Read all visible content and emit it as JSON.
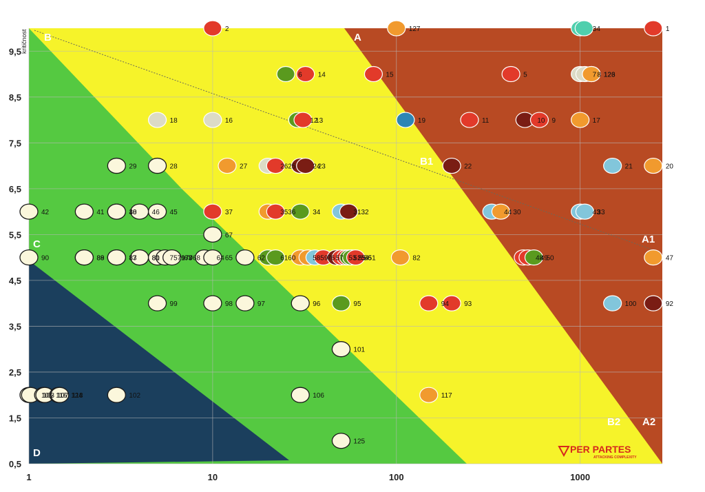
{
  "chart_data": {
    "type": "scatter",
    "ylabel": "kritičnost",
    "x_scale": "log",
    "xlim": [
      1,
      2800
    ],
    "ylim": [
      0.5,
      10
    ],
    "x_ticks": [
      "1",
      "10",
      "100",
      "1000"
    ],
    "y_ticks": [
      "0,5",
      "1,5",
      "2,5",
      "3,5",
      "4,5",
      "5,5",
      "6,5",
      "7,5",
      "8,5",
      "9,5"
    ],
    "grid": true,
    "colors": {
      "zone_A": "#b84a23",
      "zone_B": "#f6f32a",
      "zone_C": "#55c941",
      "zone_D": "#1b3f5d",
      "cream": "#fbf7dc",
      "red": "#e23a2a",
      "orange": "#f19a2e",
      "green": "#5a9a1e",
      "lightblue": "#82c6db",
      "darkred": "#7a1d14",
      "teal": "#4fcfad",
      "grey": "#dcdbc6",
      "blue": "#2e86b4"
    },
    "zones": [
      {
        "name": "A",
        "label": "A"
      },
      {
        "name": "A1",
        "label": "A1"
      },
      {
        "name": "A2",
        "label": "A2"
      },
      {
        "name": "B",
        "label": "B"
      },
      {
        "name": "B1",
        "label": "B1"
      },
      {
        "name": "B2",
        "label": "B2"
      },
      {
        "name": "C",
        "label": "C"
      },
      {
        "name": "D",
        "label": "D"
      }
    ],
    "points": [
      {
        "label": "1",
        "x": 2500,
        "y": 10,
        "color": "red"
      },
      {
        "label": "2",
        "x": 10,
        "y": 10,
        "color": "red"
      },
      {
        "label": "3",
        "x": 1000,
        "y": 10,
        "color": "teal"
      },
      {
        "label": "4",
        "x": 1050,
        "y": 10,
        "color": "teal"
      },
      {
        "label": "127",
        "x": 100,
        "y": 10,
        "color": "orange"
      },
      {
        "label": "6",
        "x": 25,
        "y": 9,
        "color": "green"
      },
      {
        "label": "14",
        "x": 32,
        "y": 9,
        "color": "red"
      },
      {
        "label": "15",
        "x": 75,
        "y": 9,
        "color": "red"
      },
      {
        "label": "5",
        "x": 420,
        "y": 9,
        "color": "red"
      },
      {
        "label": "7",
        "x": 1000,
        "y": 9,
        "color": "grey"
      },
      {
        "label": "8",
        "x": 1060,
        "y": 9,
        "color": "grey"
      },
      {
        "label": "126",
        "x": 1150,
        "y": 9,
        "color": "orange"
      },
      {
        "label": "123",
        "x": 1150,
        "y": 9,
        "color": "orange"
      },
      {
        "label": "18",
        "x": 5,
        "y": 8,
        "color": "grey"
      },
      {
        "label": "16",
        "x": 10,
        "y": 8,
        "color": "grey"
      },
      {
        "label": "12",
        "x": 29,
        "y": 8,
        "color": "green"
      },
      {
        "label": "13",
        "x": 31,
        "y": 8,
        "color": "red"
      },
      {
        "label": "19",
        "x": 112,
        "y": 8,
        "color": "blue"
      },
      {
        "label": "11",
        "x": 250,
        "y": 8,
        "color": "red"
      },
      {
        "label": "10",
        "x": 500,
        "y": 8,
        "color": "darkred"
      },
      {
        "label": "9",
        "x": 600,
        "y": 8,
        "color": "red"
      },
      {
        "label": "17",
        "x": 1000,
        "y": 8,
        "color": "orange"
      },
      {
        "label": "29",
        "x": 3,
        "y": 7,
        "color": "cream"
      },
      {
        "label": "28",
        "x": 5,
        "y": 7,
        "color": "cream"
      },
      {
        "label": "27",
        "x": 12,
        "y": 7,
        "color": "orange"
      },
      {
        "label": "26",
        "x": 20,
        "y": 7,
        "color": "grey"
      },
      {
        "label": "25",
        "x": 22,
        "y": 7,
        "color": "red"
      },
      {
        "label": "24",
        "x": 30,
        "y": 7,
        "color": "darkred"
      },
      {
        "label": "23",
        "x": 32,
        "y": 7,
        "color": "darkred"
      },
      {
        "label": "22",
        "x": 200,
        "y": 7,
        "color": "darkred"
      },
      {
        "label": "21",
        "x": 1500,
        "y": 7,
        "color": "lightblue"
      },
      {
        "label": "20",
        "x": 2500,
        "y": 7,
        "color": "orange"
      },
      {
        "label": "42",
        "x": 1,
        "y": 6,
        "color": "cream"
      },
      {
        "label": "41",
        "x": 2,
        "y": 6,
        "color": "cream"
      },
      {
        "label": "40",
        "x": 3,
        "y": 6,
        "color": "cream"
      },
      {
        "label": "38",
        "x": 3,
        "y": 6,
        "color": "cream"
      },
      {
        "label": "46",
        "x": 4,
        "y": 6,
        "color": "cream"
      },
      {
        "label": "45",
        "x": 5,
        "y": 6,
        "color": "cream"
      },
      {
        "label": "37",
        "x": 10,
        "y": 6,
        "color": "red"
      },
      {
        "label": "35",
        "x": 20,
        "y": 6,
        "color": "orange"
      },
      {
        "label": "36",
        "x": 22,
        "y": 6,
        "color": "red"
      },
      {
        "label": "34",
        "x": 30,
        "y": 6,
        "color": "green"
      },
      {
        "label": "31",
        "x": 50,
        "y": 6,
        "color": "lightblue"
      },
      {
        "label": "32",
        "x": 55,
        "y": 6,
        "color": "darkred"
      },
      {
        "label": "44",
        "x": 330,
        "y": 6,
        "color": "lightblue"
      },
      {
        "label": "30",
        "x": 370,
        "y": 6,
        "color": "orange"
      },
      {
        "label": "43",
        "x": 1000,
        "y": 6,
        "color": "lightblue"
      },
      {
        "label": "33",
        "x": 1060,
        "y": 6,
        "color": "lightblue"
      },
      {
        "label": "67",
        "x": 10,
        "y": 5.5,
        "color": "cream"
      },
      {
        "label": "90",
        "x": 1,
        "y": 5,
        "color": "cream"
      },
      {
        "label": "89",
        "x": 2,
        "y": 5,
        "color": "cream"
      },
      {
        "label": "88",
        "x": 2,
        "y": 5,
        "color": "cream"
      },
      {
        "label": "87",
        "x": 3,
        "y": 5,
        "color": "cream"
      },
      {
        "label": "83",
        "x": 3,
        "y": 5,
        "color": "cream"
      },
      {
        "label": "81",
        "x": 4,
        "y": 5,
        "color": "cream"
      },
      {
        "label": "80",
        "x": 4,
        "y": 5,
        "color": "cream"
      },
      {
        "label": "757970",
        "x": 5,
        "y": 5,
        "color": "cream"
      },
      {
        "label": "717768",
        "x": 5.5,
        "y": 5,
        "color": "cream"
      },
      {
        "label": "63",
        "x": 6,
        "y": 5,
        "color": "cream"
      },
      {
        "label": "64",
        "x": 9,
        "y": 5,
        "color": "cream"
      },
      {
        "label": "65",
        "x": 10,
        "y": 5,
        "color": "cream"
      },
      {
        "label": "62",
        "x": 15,
        "y": 5,
        "color": "cream"
      },
      {
        "label": "61",
        "x": 20,
        "y": 5,
        "color": "green"
      },
      {
        "label": "60",
        "x": 22,
        "y": 5,
        "color": "green"
      },
      {
        "label": "58",
        "x": 30,
        "y": 5,
        "color": "orange"
      },
      {
        "label": "59",
        "x": 33,
        "y": 5,
        "color": "orange"
      },
      {
        "label": "76",
        "x": 36,
        "y": 5,
        "color": "lightblue"
      },
      {
        "label": "57",
        "x": 40,
        "y": 5,
        "color": "red"
      },
      {
        "label": "53",
        "x": 47,
        "y": 5,
        "color": "darkred"
      },
      {
        "label": "52",
        "x": 50,
        "y": 5,
        "color": "red"
      },
      {
        "label": "55",
        "x": 53,
        "y": 5,
        "color": "red"
      },
      {
        "label": "54",
        "x": 55,
        "y": 5,
        "color": "green"
      },
      {
        "label": "56",
        "x": 57,
        "y": 5,
        "color": "green"
      },
      {
        "label": "51",
        "x": 60,
        "y": 5,
        "color": "red"
      },
      {
        "label": "82",
        "x": 105,
        "y": 5,
        "color": "orange"
      },
      {
        "label": "48",
        "x": 490,
        "y": 5,
        "color": "red"
      },
      {
        "label": "49",
        "x": 520,
        "y": 5,
        "color": "red"
      },
      {
        "label": "50",
        "x": 560,
        "y": 5,
        "color": "green"
      },
      {
        "label": "47",
        "x": 2500,
        "y": 5,
        "color": "orange"
      },
      {
        "label": "99",
        "x": 5,
        "y": 4,
        "color": "cream"
      },
      {
        "label": "98",
        "x": 10,
        "y": 4,
        "color": "cream"
      },
      {
        "label": "97",
        "x": 15,
        "y": 4,
        "color": "cream"
      },
      {
        "label": "96",
        "x": 30,
        "y": 4,
        "color": "cream"
      },
      {
        "label": "95",
        "x": 50,
        "y": 4,
        "color": "green"
      },
      {
        "label": "94",
        "x": 150,
        "y": 4,
        "color": "red"
      },
      {
        "label": "93",
        "x": 200,
        "y": 4,
        "color": "red"
      },
      {
        "label": "100",
        "x": 1500,
        "y": 4,
        "color": "lightblue"
      },
      {
        "label": "92",
        "x": 2500,
        "y": 4,
        "color": "darkred"
      },
      {
        "label": "101",
        "x": 50,
        "y": 3,
        "color": "cream"
      },
      {
        "label": "105",
        "x": 1,
        "y": 2,
        "color": "cream"
      },
      {
        "label": "103",
        "x": 1.02,
        "y": 2,
        "color": "cream"
      },
      {
        "label": "116",
        "x": 1.2,
        "y": 2,
        "color": "cream"
      },
      {
        "label": "107",
        "x": 1.22,
        "y": 2,
        "color": "cream"
      },
      {
        "label": "124",
        "x": 1.45,
        "y": 2,
        "color": "cream"
      },
      {
        "label": "118",
        "x": 1.47,
        "y": 2,
        "color": "cream"
      },
      {
        "label": "102",
        "x": 3,
        "y": 2,
        "color": "cream"
      },
      {
        "label": "106",
        "x": 30,
        "y": 2,
        "color": "cream"
      },
      {
        "label": "117",
        "x": 150,
        "y": 2,
        "color": "orange"
      },
      {
        "label": "125",
        "x": 50,
        "y": 1,
        "color": "cream"
      }
    ]
  },
  "logo": {
    "name": "PER PARTES",
    "tagline": "ATTACKING COMPLEXITY"
  }
}
